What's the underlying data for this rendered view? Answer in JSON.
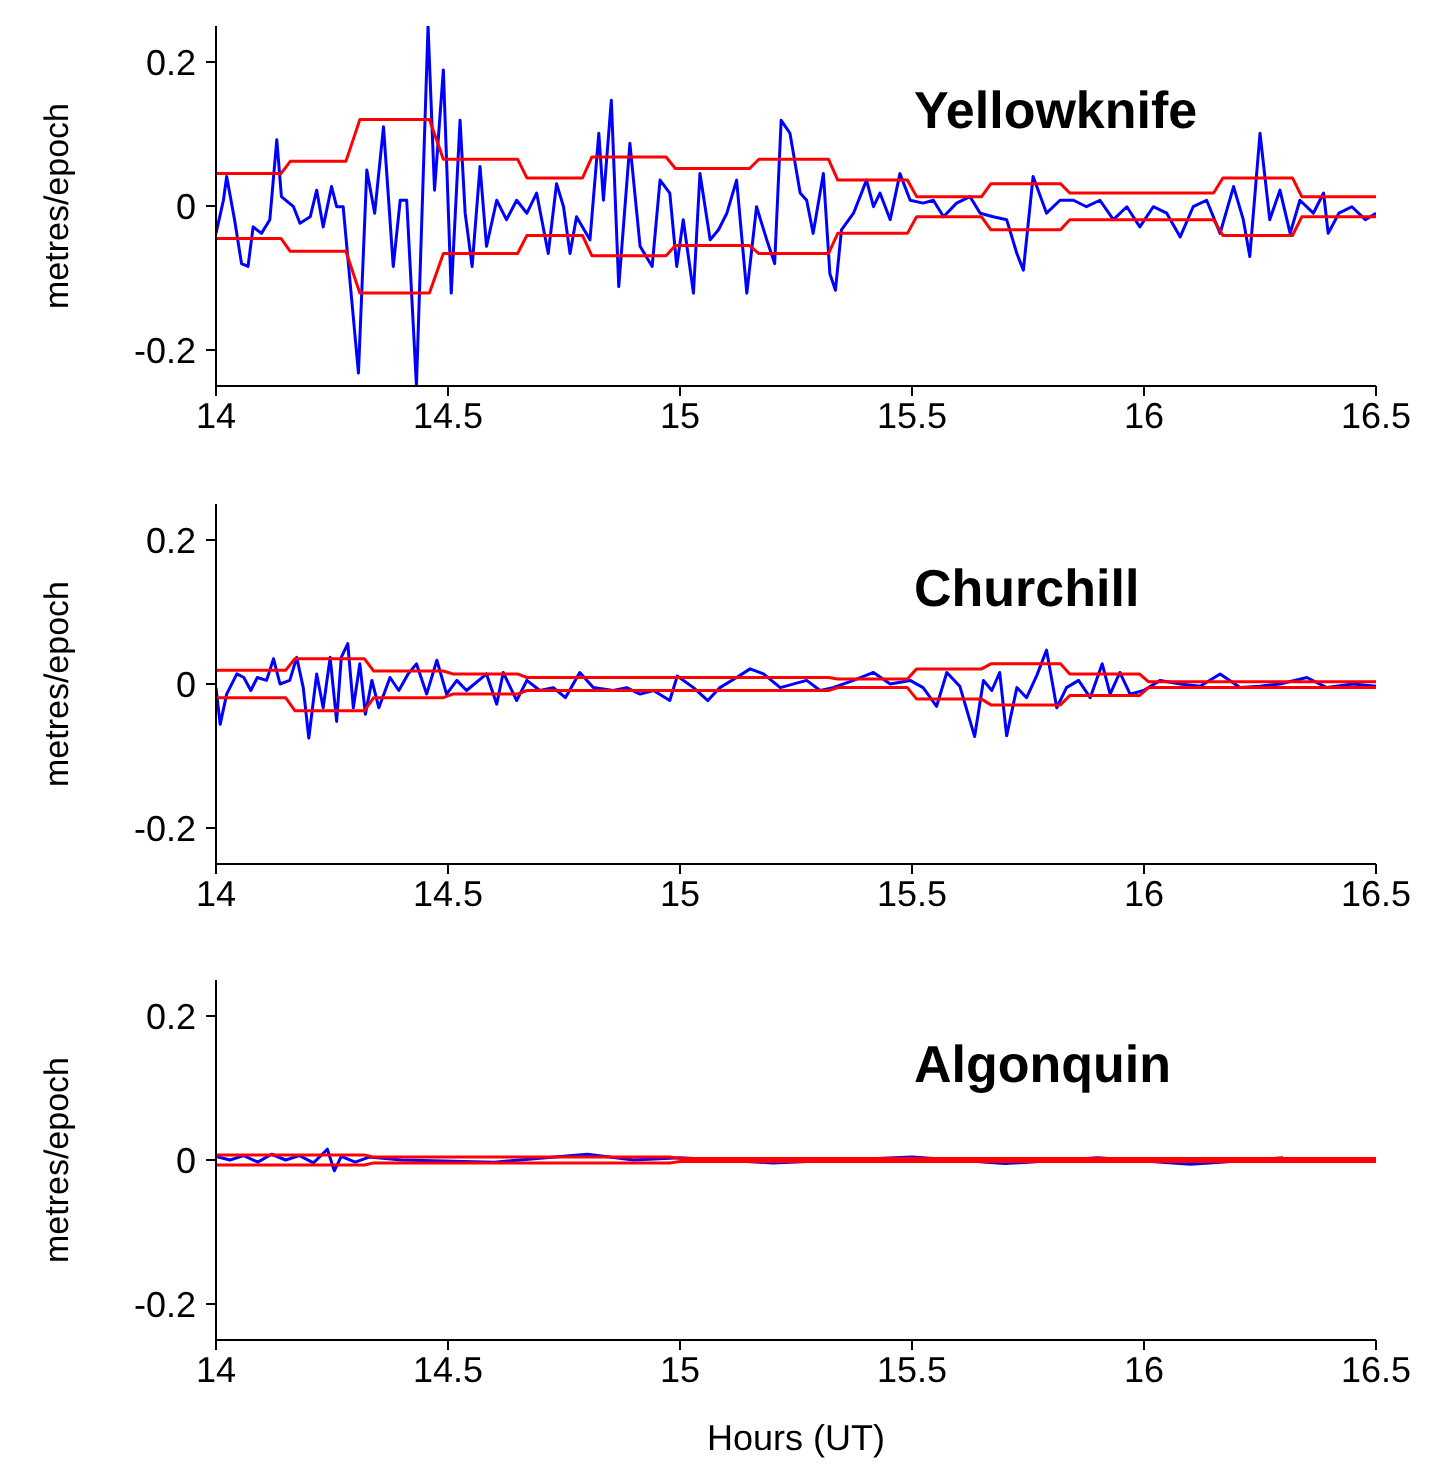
{
  "chart_data": [
    {
      "type": "line",
      "title": "Yellowknife",
      "ylabel": "metres/epoch",
      "xlim": [
        14,
        16.5
      ],
      "xticks": [
        14,
        14.5,
        15,
        15.5,
        16,
        16.5
      ],
      "ylim": [
        -0.25,
        0.25
      ],
      "yticks": [
        -0.2,
        0,
        0.2
      ],
      "series": [
        {
          "color": "#0000ff",
          "x": [
            14.0,
            14.016,
            14.023,
            14.04,
            14.055,
            14.069,
            14.08,
            14.098,
            14.116,
            14.131,
            14.141,
            14.167,
            14.181,
            14.203,
            14.217,
            14.231,
            14.249,
            14.26,
            14.274,
            14.307,
            14.325,
            14.342,
            14.361,
            14.382,
            14.397,
            14.411,
            14.432,
            14.457,
            14.471,
            14.49,
            14.507,
            14.526,
            14.537,
            14.552,
            14.569,
            14.583,
            14.605,
            14.626,
            14.648,
            14.67,
            14.691,
            14.716,
            14.734,
            14.749,
            14.763,
            14.777,
            14.806,
            14.825,
            14.835,
            14.852,
            14.868,
            14.892,
            14.914,
            14.94,
            14.957,
            14.978,
            14.993,
            15.007,
            15.029,
            15.043,
            15.065,
            15.083,
            15.101,
            15.122,
            15.144,
            15.165,
            15.187,
            15.204,
            15.218,
            15.237,
            15.259,
            15.273,
            15.287,
            15.309,
            15.323,
            15.335,
            15.348,
            15.374,
            15.402,
            15.417,
            15.431,
            15.453,
            15.474,
            15.496,
            15.524,
            15.546,
            15.568,
            15.596,
            15.625,
            15.647,
            15.675,
            15.704,
            15.726,
            15.74,
            15.761,
            15.79,
            15.819,
            15.848,
            15.876,
            15.905,
            15.934,
            15.963,
            15.991,
            16.02,
            16.049,
            16.078,
            16.106,
            16.135,
            16.164,
            16.193,
            16.214,
            16.228,
            16.25,
            16.271,
            16.293,
            16.315,
            16.336,
            16.365,
            16.387,
            16.397,
            16.42,
            16.448,
            16.477,
            16.5
          ],
          "values": [
            -0.038,
            0.008,
            0.041,
            -0.019,
            -0.08,
            -0.084,
            -0.029,
            -0.038,
            -0.019,
            0.092,
            0.013,
            -0.001,
            -0.024,
            -0.015,
            0.022,
            -0.029,
            0.027,
            -0.001,
            -0.001,
            -0.232,
            0.05,
            -0.01,
            0.11,
            -0.084,
            0.008,
            0.008,
            -0.25,
            0.25,
            0.022,
            0.189,
            -0.121,
            0.119,
            -0.01,
            -0.084,
            0.055,
            -0.056,
            0.008,
            -0.019,
            0.008,
            -0.01,
            0.018,
            -0.066,
            0.031,
            -0.001,
            -0.066,
            -0.015,
            -0.047,
            0.101,
            0.008,
            0.147,
            -0.112,
            0.087,
            -0.056,
            -0.084,
            0.036,
            0.018,
            -0.084,
            -0.019,
            -0.121,
            0.045,
            -0.047,
            -0.033,
            -0.01,
            0.036,
            -0.121,
            -0.001,
            -0.047,
            -0.08,
            0.119,
            0.101,
            0.018,
            0.008,
            -0.038,
            0.045,
            -0.094,
            -0.117,
            -0.033,
            -0.01,
            0.036,
            -0.001,
            0.018,
            -0.019,
            0.045,
            0.008,
            0.004,
            0.008,
            -0.015,
            0.004,
            0.013,
            -0.01,
            -0.015,
            -0.019,
            -0.066,
            -0.089,
            0.041,
            -0.01,
            0.008,
            0.008,
            -0.001,
            0.008,
            -0.019,
            -0.001,
            -0.029,
            -0.001,
            -0.01,
            -0.043,
            -0.001,
            0.008,
            -0.038,
            0.027,
            -0.019,
            -0.07,
            0.101,
            -0.019,
            0.022,
            -0.038,
            0.008,
            -0.01,
            0.018,
            -0.038,
            -0.01,
            -0.001,
            -0.019,
            -0.01
          ]
        },
        {
          "color": "#ff0000",
          "x": [
            14,
            14.14,
            14.16,
            14.28,
            14.31,
            14.46,
            14.49,
            14.65,
            14.67,
            14.79,
            14.81,
            14.97,
            14.99,
            15.15,
            15.17,
            15.32,
            15.34,
            15.49,
            15.51,
            15.65,
            15.67,
            15.82,
            15.84,
            16.15,
            16.17,
            16.32,
            16.34,
            16.5
          ],
          "values": [
            0.045,
            0.045,
            0.062,
            0.062,
            0.12,
            0.12,
            0.065,
            0.065,
            0.039,
            0.039,
            0.068,
            0.068,
            0.052,
            0.052,
            0.065,
            0.065,
            0.036,
            0.036,
            0.013,
            0.013,
            0.031,
            0.031,
            0.018,
            0.018,
            0.039,
            0.039,
            0.013,
            0.013
          ]
        },
        {
          "color": "#ff0000",
          "x": [
            14,
            14.14,
            14.16,
            14.28,
            14.31,
            14.46,
            14.49,
            14.65,
            14.67,
            14.79,
            14.81,
            14.97,
            14.99,
            15.15,
            15.17,
            15.32,
            15.34,
            15.49,
            15.51,
            15.65,
            15.67,
            15.82,
            15.84,
            16.15,
            16.17,
            16.32,
            16.34,
            16.5
          ],
          "values": [
            -0.045,
            -0.045,
            -0.063,
            -0.063,
            -0.121,
            -0.121,
            -0.066,
            -0.066,
            -0.041,
            -0.041,
            -0.069,
            -0.069,
            -0.055,
            -0.055,
            -0.066,
            -0.066,
            -0.038,
            -0.038,
            -0.015,
            -0.015,
            -0.033,
            -0.033,
            -0.019,
            -0.019,
            -0.041,
            -0.041,
            -0.015,
            -0.015
          ]
        }
      ]
    },
    {
      "type": "line",
      "title": "Churchill",
      "ylabel": "metres/epoch",
      "xlim": [
        14,
        16.5
      ],
      "xticks": [
        14,
        14.5,
        15,
        15.5,
        16,
        16.5
      ],
      "ylim": [
        -0.25,
        0.25
      ],
      "yticks": [
        -0.2,
        0,
        0.2
      ],
      "series": [
        {
          "color": "#0000ff",
          "x": [
            14.0,
            14.009,
            14.023,
            14.045,
            14.06,
            14.075,
            14.089,
            14.109,
            14.124,
            14.138,
            14.159,
            14.174,
            14.188,
            14.2,
            14.217,
            14.231,
            14.246,
            14.26,
            14.27,
            14.284,
            14.296,
            14.31,
            14.322,
            14.336,
            14.351,
            14.375,
            14.394,
            14.414,
            14.432,
            14.454,
            14.476,
            14.497,
            14.519,
            14.54,
            14.583,
            14.605,
            14.619,
            14.648,
            14.67,
            14.698,
            14.727,
            14.753,
            14.784,
            14.813,
            14.856,
            14.885,
            14.914,
            14.943,
            14.978,
            14.994,
            15.029,
            15.06,
            15.086,
            15.122,
            15.151,
            15.18,
            15.216,
            15.273,
            15.302,
            15.33,
            15.374,
            15.417,
            15.453,
            15.496,
            15.524,
            15.553,
            15.575,
            15.603,
            15.635,
            15.654,
            15.672,
            15.689,
            15.704,
            15.726,
            15.747,
            15.769,
            15.79,
            15.812,
            15.833,
            15.859,
            15.884,
            15.91,
            15.927,
            15.948,
            15.97,
            15.999,
            16.035,
            16.078,
            16.121,
            16.164,
            16.207,
            16.25,
            16.293,
            16.351,
            16.394,
            16.451,
            16.5
          ],
          "values": [
            -0.005,
            -0.056,
            -0.014,
            0.014,
            0.009,
            -0.009,
            0.009,
            0.005,
            0.035,
            0,
            0.005,
            0.037,
            -0.005,
            -0.075,
            0.014,
            -0.033,
            0.037,
            -0.052,
            0.037,
            0.056,
            -0.033,
            0.028,
            -0.042,
            0.005,
            -0.033,
            0.009,
            -0.009,
            0.014,
            0.028,
            -0.014,
            0.033,
            -0.014,
            0.005,
            -0.009,
            0.014,
            -0.028,
            0.016,
            -0.023,
            0.005,
            -0.009,
            -0.005,
            -0.019,
            0.016,
            -0.005,
            -0.009,
            -0.005,
            -0.014,
            -0.009,
            -0.023,
            0.011,
            -0.005,
            -0.023,
            -0.005,
            0.009,
            0.021,
            0.014,
            -0.005,
            0.005,
            -0.009,
            -0.005,
            0.005,
            0.016,
            0,
            0.005,
            -0.005,
            -0.031,
            0.016,
            -0.003,
            -0.073,
            0.005,
            -0.009,
            0.016,
            -0.072,
            -0.005,
            -0.019,
            0.012,
            0.047,
            -0.033,
            -0.005,
            0.005,
            -0.019,
            0.028,
            -0.014,
            0.016,
            -0.014,
            -0.009,
            0.005,
            0,
            -0.003,
            0.014,
            -0.005,
            -0.003,
            0,
            0.009,
            -0.005,
            0,
            -0.003
          ]
        },
        {
          "color": "#ff0000",
          "x": [
            14,
            14.15,
            14.17,
            14.32,
            14.34,
            14.49,
            14.51,
            14.65,
            14.67,
            15.32,
            15.34,
            15.49,
            15.51,
            15.65,
            15.67,
            15.82,
            15.84,
            15.99,
            16.01,
            16.5
          ],
          "values": [
            0.019,
            0.019,
            0.035,
            0.035,
            0.018,
            0.018,
            0.014,
            0.014,
            0.009,
            0.009,
            0.007,
            0.007,
            0.021,
            0.021,
            0.028,
            0.028,
            0.014,
            0.014,
            0.003,
            0.003
          ]
        },
        {
          "color": "#ff0000",
          "x": [
            14,
            14.15,
            14.17,
            14.32,
            14.34,
            14.49,
            14.51,
            14.65,
            14.67,
            15.32,
            15.34,
            15.49,
            15.51,
            15.65,
            15.67,
            15.82,
            15.84,
            15.99,
            16.01,
            16.5
          ],
          "values": [
            -0.019,
            -0.019,
            -0.037,
            -0.037,
            -0.019,
            -0.019,
            -0.014,
            -0.014,
            -0.009,
            -0.009,
            -0.005,
            -0.005,
            -0.021,
            -0.021,
            -0.029,
            -0.029,
            -0.016,
            -0.016,
            -0.005,
            -0.005
          ]
        }
      ]
    },
    {
      "type": "line",
      "title": "Algonquin",
      "ylabel": "metres/epoch",
      "xlabel": "Hours (UT)",
      "xlim": [
        14,
        16.5
      ],
      "xticks": [
        14,
        14.5,
        15,
        15.5,
        16,
        16.5
      ],
      "ylim": [
        -0.25,
        0.25
      ],
      "yticks": [
        -0.2,
        0,
        0.2
      ],
      "series": [
        {
          "color": "#0000ff",
          "x": [
            14,
            14.03,
            14.06,
            14.09,
            14.12,
            14.15,
            14.18,
            14.21,
            14.24,
            14.255,
            14.27,
            14.3,
            14.33,
            14.4,
            14.6,
            14.8,
            14.9,
            15,
            15.2,
            15.5,
            15.7,
            15.9,
            16.1,
            16.3
          ],
          "values": [
            0.005,
            0,
            0.006,
            -0.003,
            0.008,
            0,
            0.006,
            -0.004,
            0.015,
            -0.015,
            0.005,
            -0.003,
            0.004,
            0,
            -0.003,
            0.008,
            0,
            0.003,
            -0.004,
            0.004,
            -0.005,
            0.003,
            -0.006,
            0.003
          ]
        },
        {
          "color": "#ff0000",
          "x": [
            14,
            14.32,
            14.34,
            14.98,
            15,
            16.5
          ],
          "values": [
            0.007,
            0.007,
            0.004,
            0.004,
            0.002,
            0.002
          ]
        },
        {
          "color": "#ff0000",
          "x": [
            14,
            14.32,
            14.34,
            14.98,
            15,
            16.5
          ],
          "values": [
            -0.007,
            -0.007,
            -0.004,
            -0.004,
            -0.002,
            -0.002
          ]
        }
      ]
    }
  ]
}
